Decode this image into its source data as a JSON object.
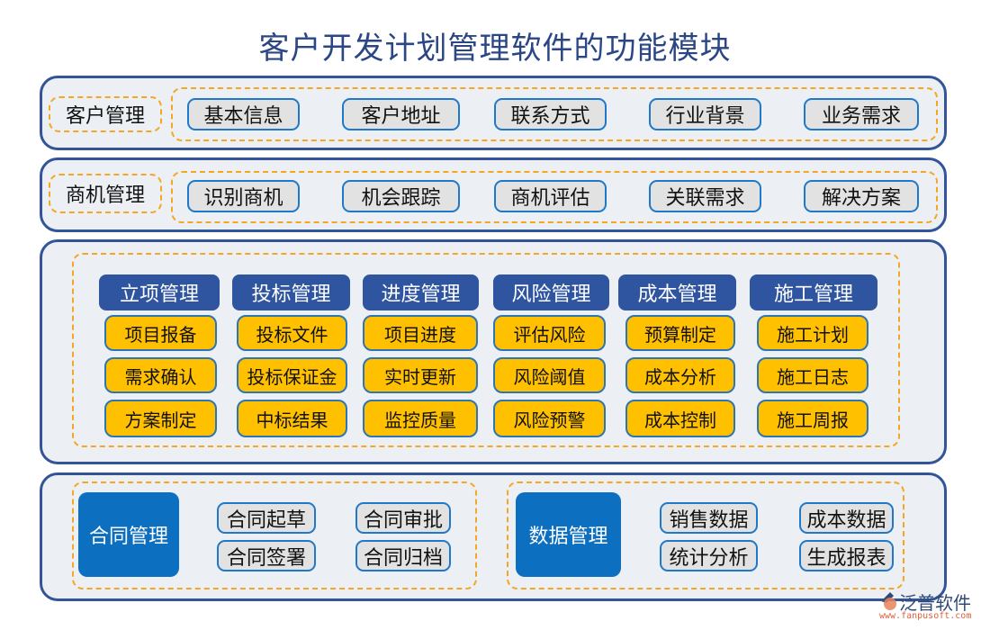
{
  "title": "客户开发计划管理软件的功能模块",
  "customer": {
    "label": "客户管理",
    "items": [
      "基本信息",
      "客户地址",
      "联系方式",
      "行业背景",
      "业务需求"
    ]
  },
  "opportunity": {
    "label": "商机管理",
    "items": [
      "识别商机",
      "机会跟踪",
      "商机评估",
      "关联需求",
      "解决方案"
    ]
  },
  "projects": [
    {
      "header": "立项管理",
      "items": [
        "项目报备",
        "需求确认",
        "方案制定"
      ]
    },
    {
      "header": "投标管理",
      "items": [
        "投标文件",
        "投标保证金",
        "中标结果"
      ]
    },
    {
      "header": "进度管理",
      "items": [
        "项目进度",
        "实时更新",
        "监控质量"
      ]
    },
    {
      "header": "风险管理",
      "items": [
        "评估风险",
        "风险阈值",
        "风险预警"
      ]
    },
    {
      "header": "成本管理",
      "items": [
        "预算制定",
        "成本分析",
        "成本控制"
      ]
    },
    {
      "header": "施工管理",
      "items": [
        "施工计划",
        "施工日志",
        "施工周报"
      ]
    }
  ],
  "contract": {
    "label": "合同管理",
    "items": [
      "合同起草",
      "合同审批",
      "合同签署",
      "合同归档"
    ]
  },
  "data_mgmt": {
    "label": "数据管理",
    "items": [
      "销售数据",
      "成本数据",
      "统计分析",
      "生成报表"
    ]
  },
  "logo": {
    "name": "泛普软件",
    "url": "www.fanpusoft.com"
  },
  "colors": {
    "panel_border": "#34549a",
    "header": "#2f55a0",
    "yellow": "#ffc000",
    "dark_blue": "#0c6fc0",
    "dash": "#f5a623"
  }
}
